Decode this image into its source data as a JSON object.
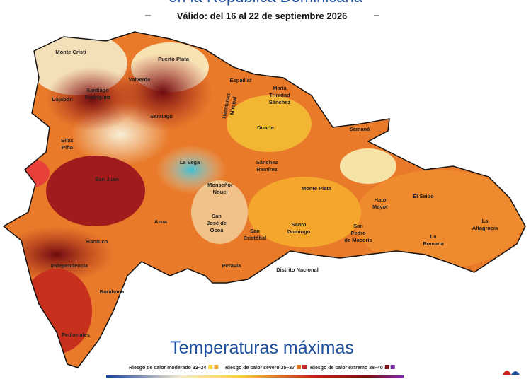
{
  "header": {
    "title": "en la República Dominicana",
    "subtitle": "Válido: del 16  al 22 de septiembre 2026"
  },
  "provinces": [
    {
      "label": [
        "Monte Cristi"
      ]
    },
    {
      "label": [
        "Puerto Plata"
      ]
    },
    {
      "label": [
        "Valverde"
      ]
    },
    {
      "label": [
        "Dajabón"
      ]
    },
    {
      "label": [
        "Santiago",
        "Rodríguez"
      ]
    },
    {
      "label": [
        "Espaillat"
      ]
    },
    {
      "label": [
        "María",
        "Trinidad",
        "Sánchez"
      ]
    },
    {
      "label": [
        "Hermanas",
        "Mirabal"
      ]
    },
    {
      "label": [
        "Santiago"
      ]
    },
    {
      "label": [
        "Duarte"
      ]
    },
    {
      "label": [
        "Samaná"
      ]
    },
    {
      "label": [
        "Elías",
        "Piña"
      ]
    },
    {
      "label": [
        "La Vega"
      ]
    },
    {
      "label": [
        "Sánchez",
        "Ramírez"
      ]
    },
    {
      "label": [
        "Monseñor",
        "Nouel"
      ]
    },
    {
      "label": [
        "Monte Plata"
      ]
    },
    {
      "label": [
        "San Juan"
      ]
    },
    {
      "label": [
        "Hato",
        "Mayor"
      ]
    },
    {
      "label": [
        "El Seibo"
      ]
    },
    {
      "label": [
        "La",
        "Altagracia"
      ]
    },
    {
      "label": [
        "Azua"
      ]
    },
    {
      "label": [
        "San",
        "José de",
        "Ocoa"
      ]
    },
    {
      "label": [
        "San",
        "Cristóbal"
      ]
    },
    {
      "label": [
        "Santo",
        "Domingo"
      ]
    },
    {
      "label": [
        "San",
        "Pedro",
        "de Macorís"
      ]
    },
    {
      "label": [
        "La",
        "Romana"
      ]
    },
    {
      "label": [
        "Baoruco"
      ]
    },
    {
      "label": [
        "Independencia"
      ]
    },
    {
      "label": [
        "Peravia"
      ]
    },
    {
      "label": [
        "Distrito Nacional"
      ]
    },
    {
      "label": [
        "Barahona"
      ]
    },
    {
      "label": [
        "Pedernales"
      ]
    }
  ],
  "footer": {
    "title": "Temperaturas máximas"
  },
  "legend": [
    {
      "label": "Riesgo de calor moderado 32–34",
      "colors": [
        "#f7d23a",
        "#f0a020"
      ]
    },
    {
      "label": "Riesgo de calor severo 35–37",
      "colors": [
        "#e8731f",
        "#c8201a"
      ]
    },
    {
      "label": "Riesgo de calor extremo 38–40",
      "colors": [
        "#7d0d12",
        "#7a2aa8"
      ]
    }
  ]
}
